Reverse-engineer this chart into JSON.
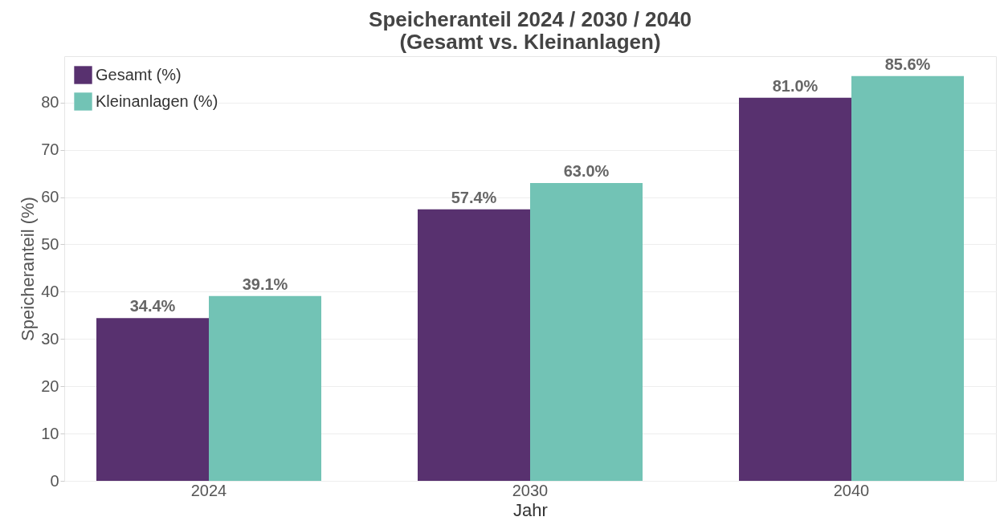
{
  "chart_data": {
    "type": "bar",
    "title": "Speicheranteil 2024 / 2030 / 2040\n(Gesamt vs. Kleinanlagen)",
    "xlabel": "Jahr",
    "ylabel": "Speicheranteil (%)",
    "categories": [
      "2024",
      "2030",
      "2040"
    ],
    "series": [
      {
        "name": "Gesamt (%)",
        "color": "#58316f",
        "values": [
          34.4,
          57.4,
          81.0
        ],
        "value_labels": [
          "34.4%",
          "57.4%",
          "81.0%"
        ]
      },
      {
        "name": "Kleinanlagen (%)",
        "color": "#72c3b5",
        "values": [
          39.1,
          63.0,
          85.6
        ],
        "value_labels": [
          "39.1%",
          "63.0%",
          "85.6%"
        ]
      }
    ],
    "ylim": [
      0,
      89.8
    ],
    "yticks": [
      0,
      10,
      20,
      30,
      40,
      50,
      60,
      70,
      80
    ],
    "grid": true,
    "legend": "top left"
  }
}
